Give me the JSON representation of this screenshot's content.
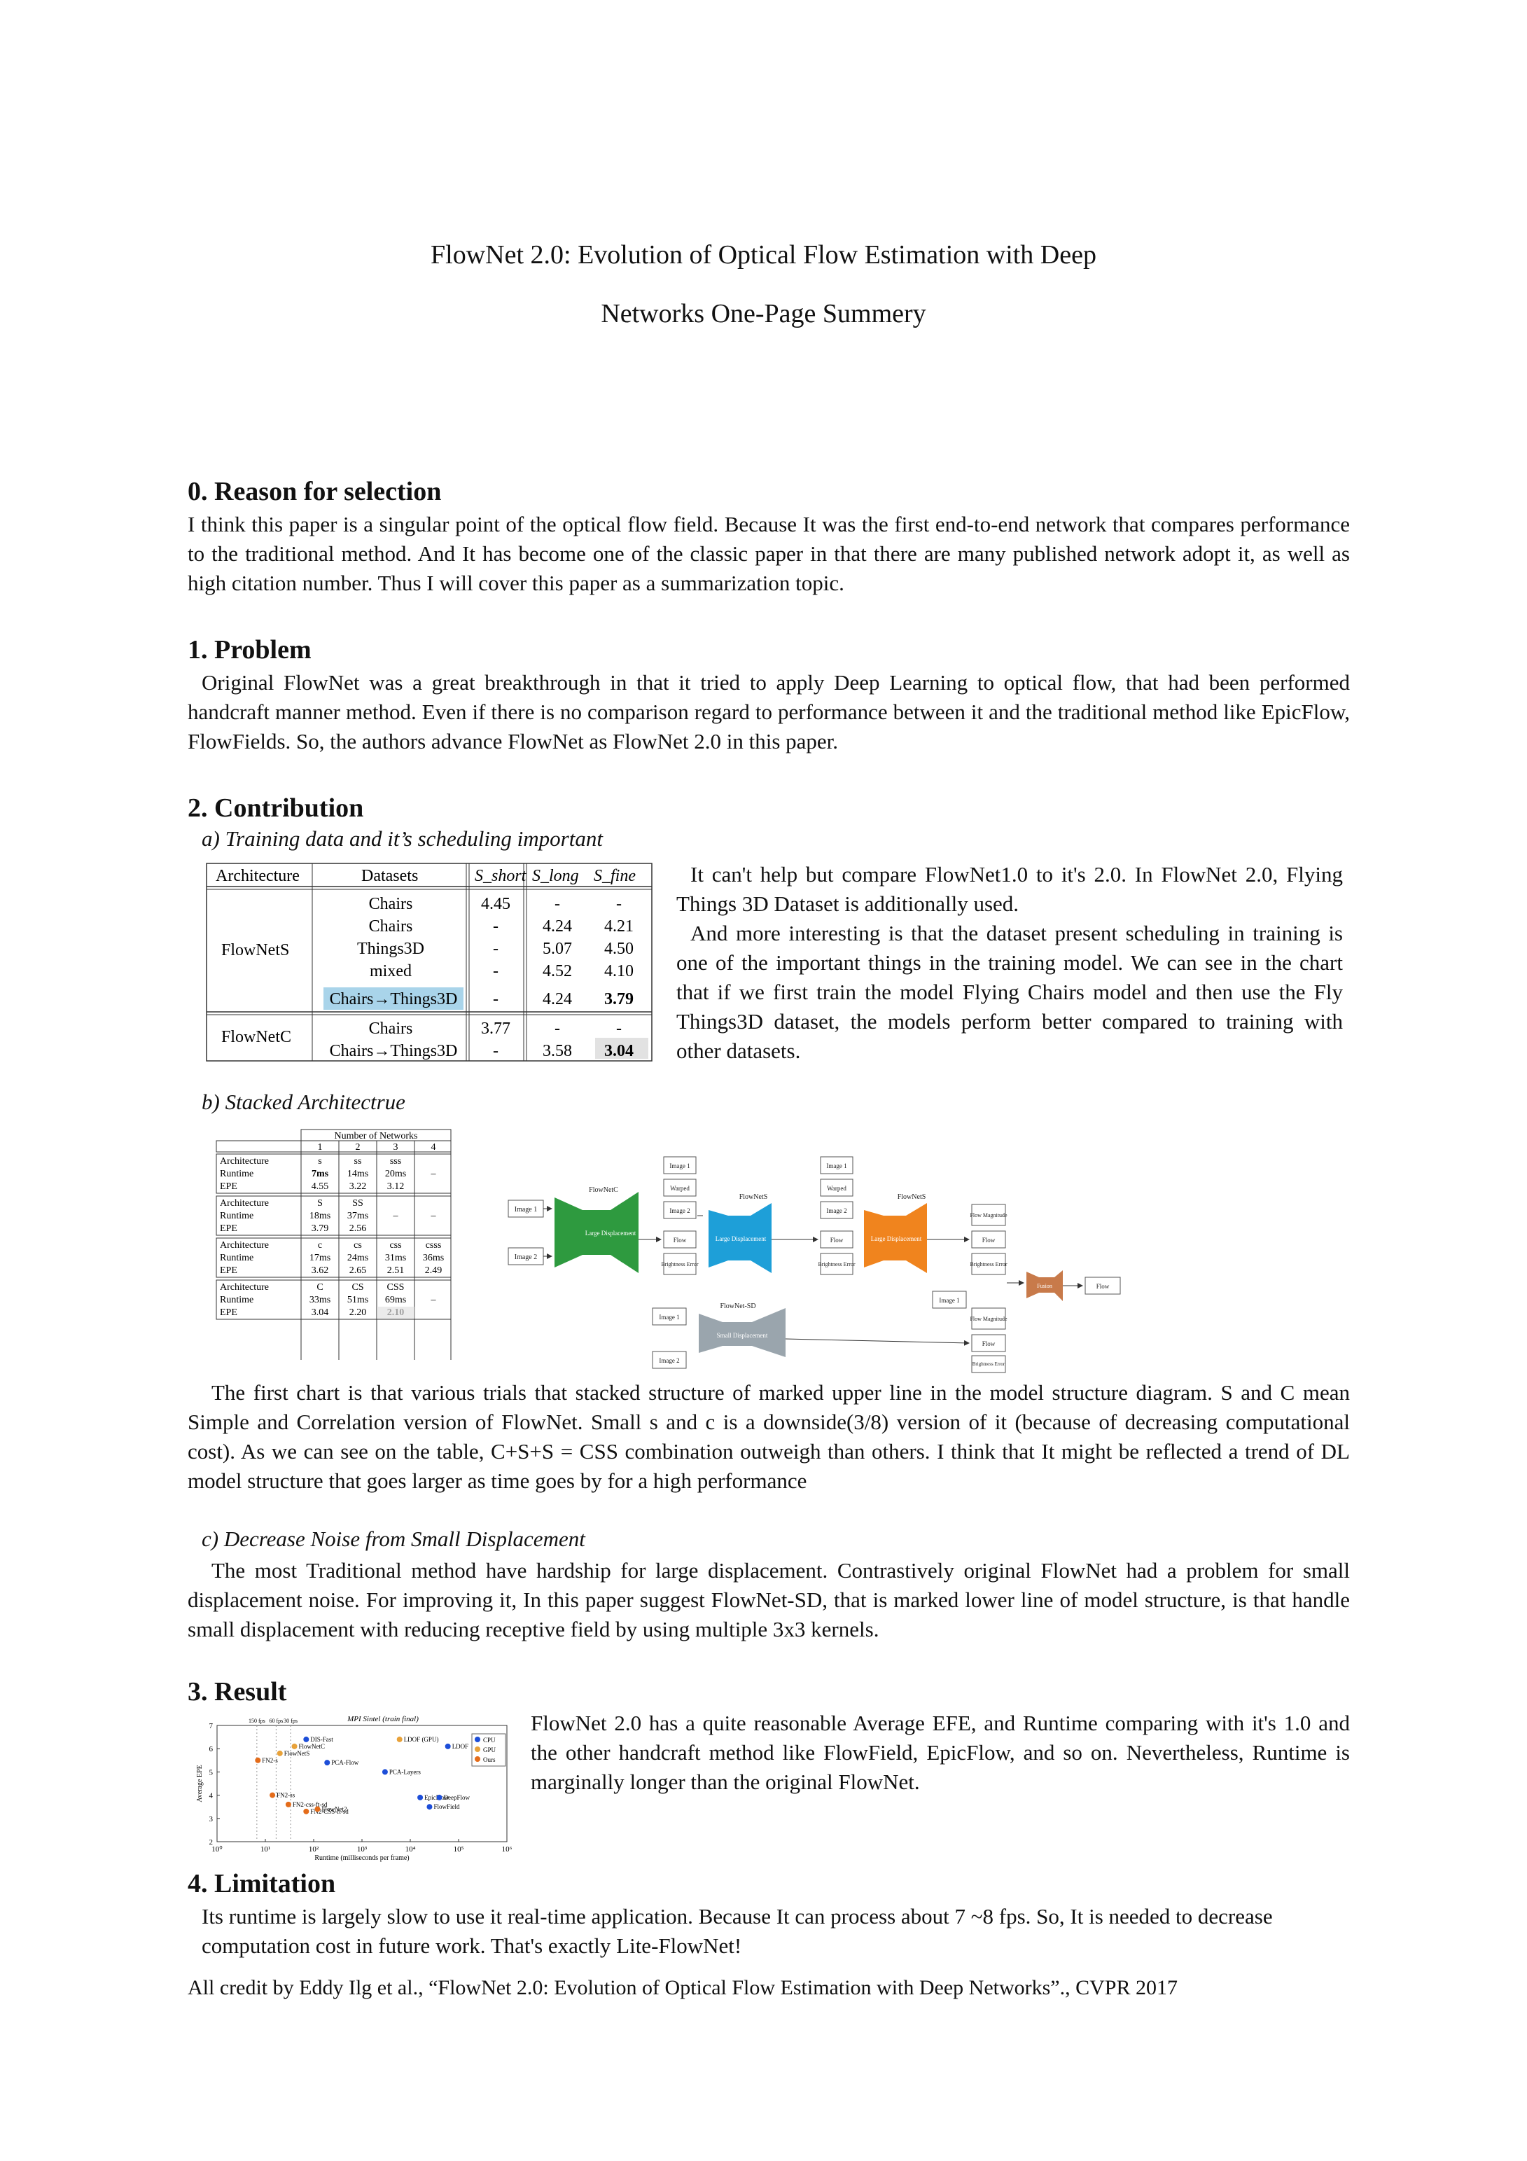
{
  "title_line1": "FlowNet 2.0: Evolution of Optical Flow Estimation with Deep",
  "title_line2": "Networks One-Page Summery",
  "s0": {
    "heading": "0. Reason for selection",
    "text": "I think this paper is a singular point of the optical flow field. Because It was the first end-to-end network that compares performance to the traditional method. And It has become one of the classic paper in that there are many published network adopt it, as well as high citation number. Thus I will cover this paper as a summarization topic."
  },
  "s1": {
    "heading": "1. Problem",
    "text": "Original FlowNet was a great breakthrough in that it tried to apply Deep Learning to optical flow, that had been performed handcraft manner method. Even if there is no comparison regard to performance between it and the traditional method like EpicFlow, FlowFields. So, the authors advance FlowNet as FlowNet 2.0 in this paper."
  },
  "s2": {
    "heading": "2. Contribution",
    "a_title": "a) Training data and it’s scheduling important",
    "a_text1": "It can't help but compare FlowNet1.0 to it's 2.0. In FlowNet 2.0, Flying Things 3D Dataset is additionally used.",
    "a_text2": "And more interesting is that the dataset present scheduling in training is one of the important things in the training model. We can see in the chart that if we first train the model Flying Chairs model and then use the Fly Things3D dataset, the models perform better compared to training with other datasets.",
    "table_a": {
      "headers": [
        "Architecture",
        "Datasets",
        "S_short",
        "S_long",
        "S_fine"
      ],
      "flownets_label": "FlowNetS",
      "flownetc_label": "FlowNetC",
      "rows_s": [
        [
          "Chairs",
          "4.45",
          "-",
          "-"
        ],
        [
          "Chairs",
          "-",
          "4.24",
          "4.21"
        ],
        [
          "Things3D",
          "-",
          "5.07",
          "4.50"
        ],
        [
          "mixed",
          "-",
          "4.52",
          "4.10"
        ],
        [
          "Chairs→Things3D",
          "-",
          "4.24",
          "3.79"
        ]
      ],
      "rows_c": [
        [
          "Chairs",
          "3.77",
          "-",
          "-"
        ],
        [
          "Chairs→Things3D",
          "-",
          "3.58",
          "3.04"
        ]
      ]
    },
    "b_title": "b) Stacked Architectrue",
    "table_b": {
      "header_top": "Number of Networks",
      "cols": [
        "1",
        "2",
        "3",
        "4"
      ],
      "groups": [
        {
          "labels": [
            "Architecture",
            "Runtime",
            "EPE"
          ],
          "vals": [
            [
              "s",
              "ss",
              "sss",
              ""
            ],
            [
              "7ms",
              "14ms",
              "20ms",
              "–"
            ],
            [
              "4.55",
              "3.22",
              "3.12",
              ""
            ]
          ]
        },
        {
          "labels": [
            "Architecture",
            "Runtime",
            "EPE"
          ],
          "vals": [
            [
              "S",
              "SS",
              "",
              ""
            ],
            [
              "18ms",
              "37ms",
              "–",
              "–"
            ],
            [
              "3.79",
              "2.56",
              "",
              ""
            ]
          ]
        },
        {
          "labels": [
            "Architecture",
            "Runtime",
            "EPE"
          ],
          "vals": [
            [
              "c",
              "cs",
              "css",
              "csss"
            ],
            [
              "17ms",
              "24ms",
              "31ms",
              "36ms"
            ],
            [
              "3.62",
              "2.65",
              "2.51",
              "2.49"
            ]
          ]
        },
        {
          "labels": [
            "Architecture",
            "Runtime",
            "EPE"
          ],
          "vals": [
            [
              "C",
              "CS",
              "CSS",
              ""
            ],
            [
              "33ms",
              "51ms",
              "69ms",
              "–"
            ],
            [
              "3.04",
              "2.20",
              "2.10",
              ""
            ]
          ]
        }
      ]
    },
    "diagram": {
      "image1": "Image 1",
      "image2": "Image 2",
      "warped": "Warped",
      "flow": "Flow",
      "brightness": "Brightness Error",
      "flow_mag": "Flow Magnitude",
      "flownetc": "FlowNetC",
      "flownets": "FlowNetS",
      "flownetsd": "FlowNet-SD",
      "large_disp": "Large Displacement",
      "small_disp": "Small Displacement",
      "fusion": "Fusion",
      "colors": {
        "green": "#2e9a3f",
        "blue": "#1e9fd8",
        "orange": "#f0841e",
        "gray": "#9aa5ad",
        "fusion": "#c87a4a"
      }
    },
    "b_text": "The first chart is that various trials that stacked structure of marked upper line in the model structure diagram. S and C mean Simple and Correlation version of FlowNet. Small s and c is a downside(3/8) version of it (because of decreasing computational cost). As we can see on the table, C+S+S = CSS combination outweigh than others. I think that It might be reflected a trend of DL model structure that goes larger as time goes by for a high performance",
    "c_title": "c) Decrease Noise from Small Displacement",
    "c_text": "The most Traditional method have hardship for large displacement. Contrastively original FlowNet had a problem for small displacement noise. For improving it, In this paper suggest FlowNet-SD, that is marked lower line of model structure, is that handle small displacement with reducing receptive field by using multiple 3x3 kernels."
  },
  "s3": {
    "heading": "3. Result",
    "text": "FlowNet 2.0 has a quite reasonable Average EFE, and Runtime comparing with it's 1.0 and the other handcraft method like FlowField, EpicFlow, and so on. Nevertheless, Runtime is marginally longer than the original FlowNet."
  },
  "chart_data": {
    "type": "scatter",
    "title": "MPI Sintel (train final)",
    "xlabel": "Runtime (milliseconds per frame)",
    "ylabel": "Average EPE",
    "xscale": "log",
    "xlim": [
      1,
      1000000
    ],
    "ylim": [
      2,
      7
    ],
    "yticks": [
      "2",
      "3",
      "4",
      "5",
      "6",
      "7"
    ],
    "xticks": [
      "10⁰",
      "10¹",
      "10²",
      "10³",
      "10⁴",
      "10⁵",
      "10⁶"
    ],
    "fps_marks": [
      "150 fps",
      "60 fps",
      "30 fps"
    ],
    "legend": [
      "CPU",
      "GPU",
      "Ours"
    ],
    "series": [
      {
        "name": "DIS-Fast",
        "x": 70,
        "y": 6.4,
        "group": "CPU"
      },
      {
        "name": "FlowNetC",
        "x": 40,
        "y": 6.1,
        "group": "GPU"
      },
      {
        "name": "FlowNetS",
        "x": 20,
        "y": 5.8,
        "group": "GPU"
      },
      {
        "name": "FN2-s",
        "x": 7,
        "y": 5.5,
        "group": "Ours"
      },
      {
        "name": "PCA-Flow",
        "x": 190,
        "y": 5.4,
        "group": "CPU"
      },
      {
        "name": "LDOF (GPU)",
        "x": 6000,
        "y": 6.4,
        "group": "GPU"
      },
      {
        "name": "LDOF",
        "x": 60000,
        "y": 6.1,
        "group": "CPU"
      },
      {
        "name": "PCA-Layers",
        "x": 3000,
        "y": 5.0,
        "group": "CPU"
      },
      {
        "name": "FN2-ss",
        "x": 14,
        "y": 4.0,
        "group": "Ours"
      },
      {
        "name": "FN2-css-ft-sd",
        "x": 30,
        "y": 3.6,
        "group": "Ours"
      },
      {
        "name": "FN2-CSS-ft-sd",
        "x": 70,
        "y": 3.3,
        "group": "Ours"
      },
      {
        "name": "FlowNet2",
        "x": 120,
        "y": 3.4,
        "group": "Ours"
      },
      {
        "name": "EpicFlow",
        "x": 16000,
        "y": 3.9,
        "group": "CPU"
      },
      {
        "name": "DeepFlow",
        "x": 40000,
        "y": 3.9,
        "group": "CPU"
      },
      {
        "name": "FlowField",
        "x": 25000,
        "y": 3.5,
        "group": "CPU"
      }
    ]
  },
  "s4": {
    "heading": "4. Limitation",
    "text": "Its runtime is largely slow to use it real-time application. Because It can process about 7 ~8 fps. So, It is needed to decrease computation cost in future work. That's exactly Lite-FlowNet!"
  },
  "credit": "All credit by Eddy Ilg et al., “FlowNet 2.0: Evolution of Optical Flow Estimation with Deep Networks”., CVPR 2017"
}
